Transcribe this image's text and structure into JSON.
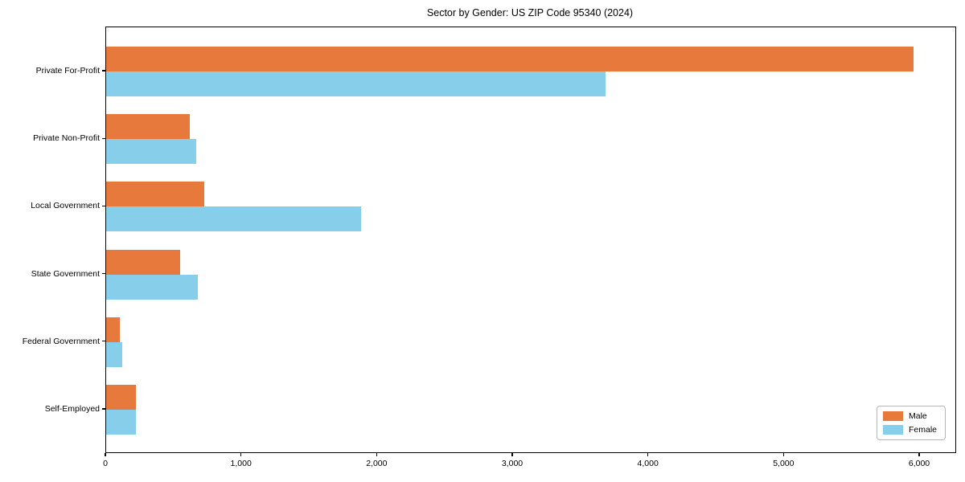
{
  "title": "Sector by Gender: US ZIP Code 95340 (2024)",
  "chart_data": {
    "type": "bar",
    "orientation": "horizontal",
    "title": "Sector by Gender: US ZIP Code 95340 (2024)",
    "categories": [
      "Private For-Profit",
      "Private Non-Profit",
      "Local Government",
      "State Government",
      "Federal Government",
      "Self-Employed"
    ],
    "series": [
      {
        "name": "Male",
        "color": "#e8793c",
        "values": [
          5950,
          615,
          725,
          545,
          100,
          220
        ]
      },
      {
        "name": "Female",
        "color": "#87ceeb",
        "values": [
          3680,
          665,
          1880,
          675,
          120,
          220
        ]
      }
    ],
    "xlim": [
      0,
      6260
    ],
    "x_ticks": [
      0,
      1000,
      2000,
      3000,
      4000,
      5000,
      6000
    ],
    "x_tick_labels": [
      "0",
      "1,000",
      "2,000",
      "3,000",
      "4,000",
      "5,000",
      "6,000"
    ],
    "grid": false,
    "legend_position": "lower right"
  },
  "legend": {
    "items": [
      {
        "label": "Male",
        "color": "#e8793c"
      },
      {
        "label": "Female",
        "color": "#87ceeb"
      }
    ]
  }
}
